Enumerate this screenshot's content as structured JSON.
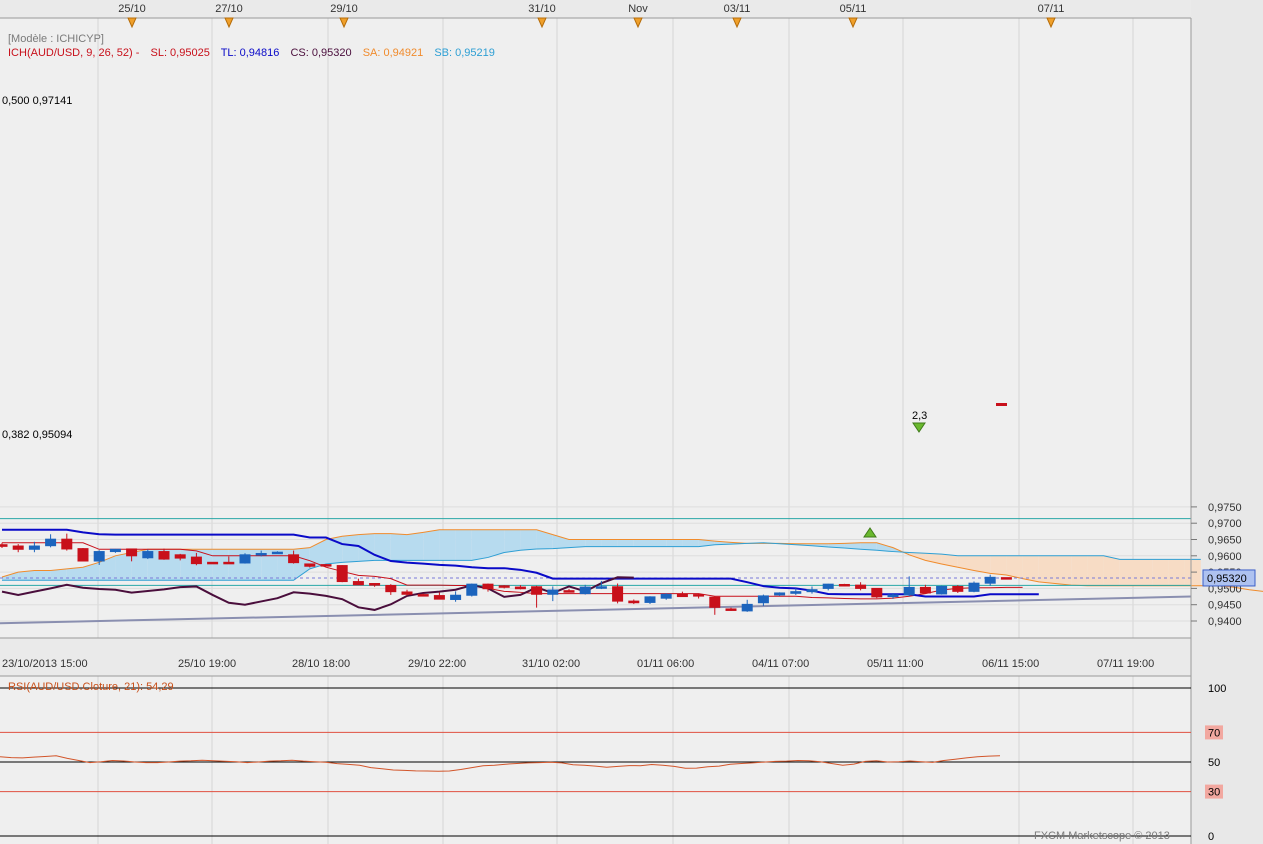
{
  "top_dates": [
    "25/10",
    "27/10",
    "29/10",
    "31/10",
    "Nov",
    "03/11",
    "05/11",
    "07/11"
  ],
  "legend": {
    "model": "[Modèle : ICHICYP]",
    "ich": "ICH(AUD/USD, 9, 26, 52) -",
    "sl": "SL: 0,95025",
    "tl": "TL: 0,94816",
    "cs": "CS: 0,95320",
    "sa": "SA: 0,94921",
    "sb": "SB: 0,95219"
  },
  "fib": {
    "f500": "0,500 0,97141",
    "f382": "0,382 0,95094"
  },
  "price_label": "0,95320",
  "annotation": "2,3",
  "rsi_title": "RSI(AUD/USD.Cloture, 21): 54,29",
  "copyright": "FXCM Marketscope © 2013",
  "colors": {
    "up": "#1c64bd",
    "down": "#c8101b",
    "tenkan": "#c8101b",
    "kijun": "#0a0ac8",
    "chikou": "#4a0e3c",
    "cloud_bull": "#b7dbef",
    "cloud_bear": "#f7dcc5",
    "span_a": "#f08b2c",
    "span_b": "#2e9fd4",
    "trend": "#8a8fb0",
    "fib": "#2aa7a7",
    "rsi": "#d2552a"
  },
  "chart_data": [
    {
      "type": "candlestick",
      "title": "ICH(AUD/USD, 9, 26, 52)",
      "yticks": [
        "0,9750",
        "0,9700",
        "0,9650",
        "0,9600",
        "0,9550",
        "0,9500",
        "0,9450",
        "0,9400"
      ],
      "ylim": [
        0.9392,
        0.9772
      ],
      "xticks": [
        "23/10/2013 15:00",
        "25/10 19:00",
        "28/10 18:00",
        "29/10 22:00",
        "31/10 02:00",
        "01/11 06:00",
        "04/11 07:00",
        "05/11 11:00",
        "06/11 15:00",
        "07/11 19:00"
      ],
      "candles": [
        {
          "o": 0.9634,
          "h": 0.964,
          "l": 0.9624,
          "c": 0.9629
        },
        {
          "o": 0.963,
          "h": 0.9636,
          "l": 0.9611,
          "c": 0.962
        },
        {
          "o": 0.962,
          "h": 0.9643,
          "l": 0.9611,
          "c": 0.963
        },
        {
          "o": 0.9631,
          "h": 0.9666,
          "l": 0.9626,
          "c": 0.9651
        },
        {
          "o": 0.9651,
          "h": 0.9668,
          "l": 0.9616,
          "c": 0.9621
        },
        {
          "o": 0.9622,
          "h": 0.9624,
          "l": 0.9583,
          "c": 0.9584
        },
        {
          "o": 0.9584,
          "h": 0.9617,
          "l": 0.9572,
          "c": 0.9613
        },
        {
          "o": 0.9613,
          "h": 0.9621,
          "l": 0.9609,
          "c": 0.962
        },
        {
          "o": 0.9621,
          "h": 0.9621,
          "l": 0.9583,
          "c": 0.96
        },
        {
          "o": 0.9594,
          "h": 0.9619,
          "l": 0.959,
          "c": 0.9613
        },
        {
          "o": 0.9613,
          "h": 0.9622,
          "l": 0.9588,
          "c": 0.959
        },
        {
          "o": 0.9603,
          "h": 0.9606,
          "l": 0.9586,
          "c": 0.9593
        },
        {
          "o": 0.9596,
          "h": 0.9609,
          "l": 0.9571,
          "c": 0.9576
        },
        {
          "o": 0.958,
          "h": 0.958,
          "l": 0.9576,
          "c": 0.9578
        },
        {
          "o": 0.958,
          "h": 0.9598,
          "l": 0.9576,
          "c": 0.9578
        },
        {
          "o": 0.9578,
          "h": 0.9608,
          "l": 0.9576,
          "c": 0.9603
        },
        {
          "o": 0.9603,
          "h": 0.9616,
          "l": 0.9598,
          "c": 0.9607
        },
        {
          "o": 0.9609,
          "h": 0.9614,
          "l": 0.9606,
          "c": 0.9611
        },
        {
          "o": 0.9603,
          "h": 0.9616,
          "l": 0.9576,
          "c": 0.9579
        },
        {
          "o": 0.9575,
          "h": 0.9576,
          "l": 0.9564,
          "c": 0.9568
        },
        {
          "o": 0.9573,
          "h": 0.9575,
          "l": 0.957,
          "c": 0.9572
        },
        {
          "o": 0.957,
          "h": 0.9571,
          "l": 0.9519,
          "c": 0.9521
        },
        {
          "o": 0.9521,
          "h": 0.953,
          "l": 0.9511,
          "c": 0.9511
        },
        {
          "o": 0.9515,
          "h": 0.9516,
          "l": 0.9505,
          "c": 0.951
        },
        {
          "o": 0.9509,
          "h": 0.9513,
          "l": 0.948,
          "c": 0.949
        },
        {
          "o": 0.9489,
          "h": 0.9496,
          "l": 0.9478,
          "c": 0.9482
        },
        {
          "o": 0.9481,
          "h": 0.9484,
          "l": 0.9476,
          "c": 0.9478
        },
        {
          "o": 0.9478,
          "h": 0.9488,
          "l": 0.9466,
          "c": 0.9467
        },
        {
          "o": 0.9466,
          "h": 0.9491,
          "l": 0.9459,
          "c": 0.9479
        },
        {
          "o": 0.9479,
          "h": 0.9515,
          "l": 0.9475,
          "c": 0.9513
        },
        {
          "o": 0.9513,
          "h": 0.9515,
          "l": 0.949,
          "c": 0.9499
        },
        {
          "o": 0.9508,
          "h": 0.951,
          "l": 0.95,
          "c": 0.9504
        },
        {
          "o": 0.9504,
          "h": 0.951,
          "l": 0.9497,
          "c": 0.9499
        },
        {
          "o": 0.9505,
          "h": 0.9508,
          "l": 0.9441,
          "c": 0.9482
        },
        {
          "o": 0.9482,
          "h": 0.9506,
          "l": 0.9461,
          "c": 0.9495
        },
        {
          "o": 0.9493,
          "h": 0.9498,
          "l": 0.9488,
          "c": 0.9489
        },
        {
          "o": 0.9484,
          "h": 0.9511,
          "l": 0.9481,
          "c": 0.9504
        },
        {
          "o": 0.9502,
          "h": 0.9523,
          "l": 0.9498,
          "c": 0.9505
        },
        {
          "o": 0.9505,
          "h": 0.9515,
          "l": 0.9454,
          "c": 0.9461
        },
        {
          "o": 0.9461,
          "h": 0.9466,
          "l": 0.9452,
          "c": 0.9456
        },
        {
          "o": 0.9457,
          "h": 0.9476,
          "l": 0.9452,
          "c": 0.9474
        },
        {
          "o": 0.947,
          "h": 0.9485,
          "l": 0.9465,
          "c": 0.9482
        },
        {
          "o": 0.9482,
          "h": 0.949,
          "l": 0.9476,
          "c": 0.9475
        },
        {
          "o": 0.9481,
          "h": 0.9484,
          "l": 0.9469,
          "c": 0.9478
        },
        {
          "o": 0.9473,
          "h": 0.9476,
          "l": 0.9419,
          "c": 0.9442
        },
        {
          "o": 0.9437,
          "h": 0.9441,
          "l": 0.9431,
          "c": 0.9434
        },
        {
          "o": 0.9431,
          "h": 0.9465,
          "l": 0.9428,
          "c": 0.9451
        },
        {
          "o": 0.9456,
          "h": 0.9481,
          "l": 0.9446,
          "c": 0.9477
        },
        {
          "o": 0.948,
          "h": 0.9488,
          "l": 0.9477,
          "c": 0.9486
        },
        {
          "o": 0.9485,
          "h": 0.95,
          "l": 0.948,
          "c": 0.949
        },
        {
          "o": 0.949,
          "h": 0.9506,
          "l": 0.9484,
          "c": 0.9496
        },
        {
          "o": 0.95,
          "h": 0.9514,
          "l": 0.9494,
          "c": 0.9513
        },
        {
          "o": 0.9512,
          "h": 0.9514,
          "l": 0.9506,
          "c": 0.951
        },
        {
          "o": 0.951,
          "h": 0.9519,
          "l": 0.9494,
          "c": 0.95
        },
        {
          "o": 0.95,
          "h": 0.9498,
          "l": 0.947,
          "c": 0.9474
        },
        {
          "o": 0.9475,
          "h": 0.9486,
          "l": 0.9468,
          "c": 0.948
        },
        {
          "o": 0.948,
          "h": 0.9537,
          "l": 0.9476,
          "c": 0.9503
        },
        {
          "o": 0.9503,
          "h": 0.9511,
          "l": 0.9485,
          "c": 0.9486
        },
        {
          "o": 0.9483,
          "h": 0.9508,
          "l": 0.9481,
          "c": 0.9506
        },
        {
          "o": 0.9506,
          "h": 0.951,
          "l": 0.9486,
          "c": 0.9491
        },
        {
          "o": 0.9491,
          "h": 0.9521,
          "l": 0.9488,
          "c": 0.9516
        },
        {
          "o": 0.9516,
          "h": 0.9542,
          "l": 0.9508,
          "c": 0.9534
        },
        {
          "o": 0.9533,
          "h": 0.9533,
          "l": 0.9532,
          "c": 0.9532
        }
      ],
      "span_a": [
        0.9535,
        0.955,
        0.9555,
        0.9555,
        0.956,
        0.9565,
        0.958,
        0.96,
        0.961,
        0.962,
        0.962,
        0.962,
        0.962,
        0.962,
        0.962,
        0.962,
        0.962,
        0.962,
        0.962,
        0.9625,
        0.965,
        0.966,
        0.9665,
        0.9668,
        0.9668,
        0.9665,
        0.9672,
        0.968,
        0.968,
        0.968,
        0.968,
        0.968,
        0.968,
        0.968,
        0.9665,
        0.965,
        0.965,
        0.965,
        0.965,
        0.965,
        0.965,
        0.965,
        0.965,
        0.965,
        0.9645,
        0.9641,
        0.9638,
        0.9638,
        0.9638,
        0.9637,
        0.9637,
        0.9637,
        0.9638,
        0.964,
        0.964,
        0.9625,
        0.9603,
        0.9586,
        0.9575,
        0.9565,
        0.9555,
        0.9546,
        0.9541,
        0.953,
        0.952,
        0.9515,
        0.951,
        0.9508,
        0.9508,
        0.9508,
        0.9508,
        0.9508,
        0.9508,
        0.9508,
        0.9508,
        0.9508,
        0.9504,
        0.9496,
        0.949,
        0.9482,
        0.9476
      ],
      "span_b": [
        0.9525,
        0.9525,
        0.9525,
        0.9525,
        0.9525,
        0.9525,
        0.9525,
        0.9525,
        0.9525,
        0.9525,
        0.9525,
        0.9525,
        0.9525,
        0.9525,
        0.9525,
        0.9525,
        0.9525,
        0.9525,
        0.9525,
        0.956,
        0.9575,
        0.958,
        0.9583,
        0.9586,
        0.9586,
        0.9586,
        0.9586,
        0.9586,
        0.9586,
        0.9586,
        0.9595,
        0.961,
        0.9617,
        0.9621,
        0.9622,
        0.9625,
        0.9628,
        0.9628,
        0.9628,
        0.9628,
        0.9628,
        0.9628,
        0.9628,
        0.9628,
        0.9634,
        0.9636,
        0.9638,
        0.964,
        0.9637,
        0.9634,
        0.9631,
        0.9627,
        0.9624,
        0.962,
        0.9617,
        0.9613,
        0.961,
        0.9608,
        0.9605,
        0.96,
        0.96,
        0.96,
        0.96,
        0.96,
        0.96,
        0.96,
        0.96,
        0.96,
        0.96,
        0.9589,
        0.9589,
        0.9589,
        0.9589,
        0.9589,
        0.9589
      ],
      "tenkan": [
        0.964,
        0.964,
        0.964,
        0.964,
        0.964,
        0.964,
        0.962,
        0.962,
        0.962,
        0.962,
        0.962,
        0.962,
        0.9615,
        0.96,
        0.96,
        0.96,
        0.96,
        0.96,
        0.96,
        0.9585,
        0.9565,
        0.9552,
        0.954,
        0.9537,
        0.953,
        0.951,
        0.951,
        0.951,
        0.9509,
        0.9509,
        0.95,
        0.9491,
        0.9488,
        0.9484,
        0.9484,
        0.9484,
        0.9484,
        0.9484,
        0.9484,
        0.9484,
        0.9484,
        0.9484,
        0.9484,
        0.9484,
        0.9476,
        0.9476,
        0.9476,
        0.9476,
        0.9476,
        0.9476,
        0.9472,
        0.9471,
        0.9469,
        0.9468,
        0.9468,
        0.947,
        0.9476,
        0.9484,
        0.9495,
        0.95,
        0.9502,
        0.9502,
        0.9503,
        0.9503
      ],
      "kijun": [
        0.968,
        0.968,
        0.968,
        0.968,
        0.968,
        0.9672,
        0.9666,
        0.9665,
        0.9665,
        0.9665,
        0.9665,
        0.9665,
        0.9665,
        0.9665,
        0.9665,
        0.9665,
        0.9665,
        0.9665,
        0.9665,
        0.9656,
        0.9656,
        0.9636,
        0.963,
        0.9603,
        0.9584,
        0.9579,
        0.9576,
        0.9572,
        0.957,
        0.9565,
        0.9562,
        0.9562,
        0.9557,
        0.9548,
        0.953,
        0.953,
        0.953,
        0.953,
        0.953,
        0.953,
        0.953,
        0.953,
        0.953,
        0.953,
        0.953,
        0.953,
        0.9519,
        0.9507,
        0.9502,
        0.95,
        0.9493,
        0.9483,
        0.9482,
        0.9482,
        0.9482,
        0.9482,
        0.9482,
        0.9475,
        0.9475,
        0.9475,
        0.9475,
        0.9482,
        0.9482,
        0.9482,
        0.9482
      ],
      "chikou": [
        0.949,
        0.948,
        0.949,
        0.95,
        0.9511,
        0.9502,
        0.9498,
        0.9496,
        0.9487,
        0.9492,
        0.9497,
        0.9504,
        0.9506,
        0.948,
        0.9456,
        0.945,
        0.946,
        0.947,
        0.9488,
        0.9484,
        0.9477,
        0.9467,
        0.9442,
        0.9434,
        0.9451,
        0.9477,
        0.9486,
        0.949,
        0.9496,
        0.951,
        0.95,
        0.9474,
        0.948,
        0.9503,
        0.9486,
        0.9506,
        0.9491,
        0.9516,
        0.9534,
        0.9533
      ],
      "trend_line": {
        "from": 0.9393,
        "to": 0.9475
      },
      "fib_levels": [
        0.97141,
        0.95094
      ],
      "current_price": 0.9532
    },
    {
      "type": "line",
      "title": "RSI(AUD/USD.Cloture, 21): 54,29",
      "yticks": [
        "100",
        "70",
        "50",
        "30",
        "0"
      ],
      "ylim": [
        0,
        100
      ],
      "values": [
        53.5,
        53.0,
        52.8,
        53.3,
        53.7,
        54.2,
        52.4,
        51.0,
        49.6,
        50.2,
        51.0,
        50.7,
        50.0,
        49.6,
        49.6,
        50.0,
        50.6,
        50.8,
        51.2,
        50.8,
        50.5,
        50.2,
        49.6,
        50.0,
        50.6,
        50.8,
        51.2,
        50.6,
        50.2,
        49.8,
        48.9,
        48.4,
        47.8,
        46.2,
        45.4,
        44.6,
        44.3,
        44.0,
        43.9,
        43.8,
        43.9,
        44.9,
        46.2,
        47.5,
        47.8,
        48.5,
        49.0,
        49.4,
        49.6,
        49.8,
        49.4,
        48.2,
        47.8,
        47.2,
        46.4,
        47.0,
        47.6,
        47.5,
        48.3,
        47.8,
        47.0,
        45.8,
        45.9,
        46.8,
        47.2,
        48.5,
        49.0,
        49.4,
        49.9,
        50.4,
        50.6,
        51.0,
        50.8,
        50.2,
        49.0,
        47.8,
        48.6,
        50.4,
        50.8,
        50.0,
        50.2,
        50.7,
        50.2,
        49.7,
        51.0,
        51.9,
        52.8,
        53.5,
        54.0,
        54.29
      ]
    }
  ]
}
